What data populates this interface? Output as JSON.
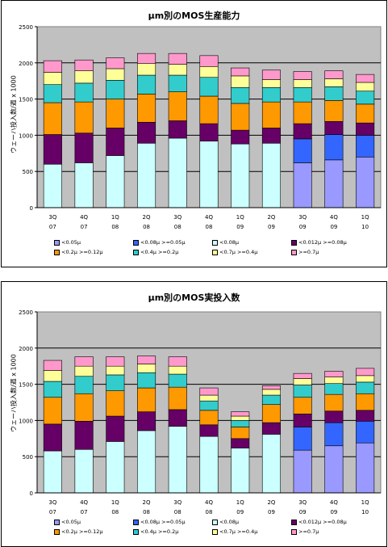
{
  "series_defs": [
    {
      "name": "<0.05μ",
      "color": "#9999ff"
    },
    {
      "name": "<0.08μ >=0.05μ",
      "color": "#3366ff"
    },
    {
      "name": "<0.08μ",
      "color": "#ccffff"
    },
    {
      "name": "<0.012μ >=0.08μ",
      "color": "#660066"
    },
    {
      "name": "<0.2μ >=0.12μ",
      "color": "#ff9900"
    },
    {
      "name": "<0.4μ >=0.2μ",
      "color": "#33cccc"
    },
    {
      "name": "<0.7μ >=0.4μ",
      "color": "#ffff99"
    },
    {
      "name": ">=0.7μ",
      "color": "#ff99cc"
    }
  ],
  "chart_data": [
    {
      "type": "bar",
      "stacked": true,
      "title": "μm別のMOS生産能力",
      "ylabel": "ウェーハ投入数/週 x 1000",
      "ylim": [
        0,
        2500
      ],
      "yticks": [
        0,
        500,
        1000,
        1500,
        2000,
        2500
      ],
      "grid": true,
      "legend_position": "bottom",
      "categories": [
        "3Q\n07",
        "4Q\n07",
        "1Q\n08",
        "2Q\n08",
        "3Q\n08",
        "4Q\n08",
        "1Q\n09",
        "2Q\n09",
        "3Q\n09",
        "4Q\n09",
        "1Q\n10"
      ],
      "series": [
        {
          "name": "<0.05μ",
          "values": [
            0,
            0,
            0,
            0,
            0,
            0,
            0,
            0,
            620,
            660,
            700
          ]
        },
        {
          "name": "<0.08μ >=0.05μ",
          "values": [
            0,
            0,
            0,
            0,
            0,
            0,
            0,
            0,
            330,
            350,
            300
          ]
        },
        {
          "name": "<0.08μ",
          "values": [
            600,
            620,
            720,
            890,
            960,
            920,
            880,
            890,
            0,
            0,
            0
          ]
        },
        {
          "name": "<0.012μ >=0.08μ",
          "values": [
            410,
            410,
            380,
            290,
            240,
            240,
            190,
            210,
            210,
            180,
            170
          ]
        },
        {
          "name": "<0.2μ >=0.12μ",
          "values": [
            440,
            430,
            400,
            390,
            400,
            380,
            370,
            360,
            300,
            290,
            260
          ]
        },
        {
          "name": "<0.4μ >=0.2μ",
          "values": [
            250,
            260,
            260,
            260,
            230,
            260,
            220,
            200,
            200,
            190,
            180
          ]
        },
        {
          "name": "<0.7μ >=0.4μ",
          "values": [
            170,
            170,
            160,
            160,
            150,
            150,
            160,
            110,
            110,
            110,
            120
          ]
        },
        {
          "name": ">=0.7μ",
          "values": [
            160,
            150,
            150,
            140,
            150,
            150,
            110,
            130,
            110,
            110,
            110
          ]
        }
      ]
    },
    {
      "type": "bar",
      "stacked": true,
      "title": "μm別のMOS実投入数",
      "ylabel": "ウェーハ投入数/週 x 1000",
      "ylim": [
        0,
        2500
      ],
      "yticks": [
        0,
        500,
        1000,
        1500,
        2000,
        2500
      ],
      "grid": true,
      "legend_position": "bottom",
      "categories": [
        "3Q\n07",
        "4Q\n07",
        "1Q\n08",
        "2Q\n08",
        "3Q\n08",
        "4Q\n08",
        "1Q\n09",
        "2Q\n09",
        "3Q\n09",
        "4Q\n09",
        "1Q\n10"
      ],
      "series": [
        {
          "name": "<0.05μ",
          "values": [
            0,
            0,
            0,
            0,
            0,
            0,
            0,
            0,
            590,
            650,
            690
          ]
        },
        {
          "name": "<0.08μ >=0.05μ",
          "values": [
            0,
            0,
            0,
            0,
            0,
            0,
            0,
            0,
            320,
            320,
            300
          ]
        },
        {
          "name": "<0.08μ",
          "values": [
            580,
            600,
            710,
            860,
            920,
            780,
            620,
            810,
            0,
            0,
            0
          ]
        },
        {
          "name": "<0.012μ >=0.08μ",
          "values": [
            370,
            390,
            350,
            260,
            230,
            160,
            130,
            160,
            180,
            160,
            150
          ]
        },
        {
          "name": "<0.2μ >=0.12μ",
          "values": [
            370,
            380,
            350,
            330,
            310,
            200,
            160,
            250,
            230,
            230,
            230
          ]
        },
        {
          "name": "<0.4μ >=0.2μ",
          "values": [
            220,
            240,
            220,
            210,
            180,
            130,
            90,
            130,
            170,
            150,
            160
          ]
        },
        {
          "name": "<0.7μ >=0.4μ",
          "values": [
            150,
            140,
            120,
            120,
            110,
            80,
            60,
            80,
            90,
            90,
            90
          ]
        },
        {
          "name": ">=0.7μ",
          "values": [
            140,
            130,
            130,
            110,
            130,
            100,
            60,
            50,
            70,
            80,
            100
          ]
        }
      ]
    }
  ]
}
